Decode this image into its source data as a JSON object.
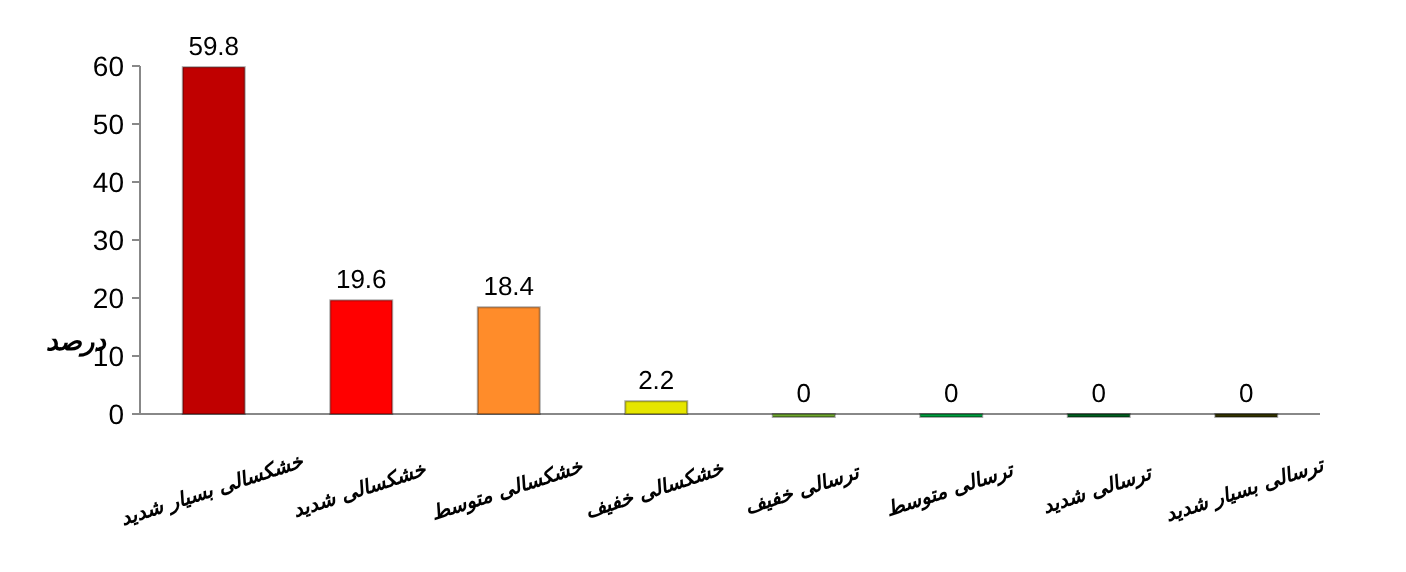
{
  "chart_data": {
    "type": "bar",
    "ylabel": "درصد",
    "categories": [
      "خشکسالی بسیار شدید",
      "خشکسالی شدید",
      "خشکسالی متوسط",
      "خشکسالی خفیف",
      "ترسالی خفیف",
      "ترسالی متوسط",
      "ترسالی شدید",
      "ترسالی بسیار شدید"
    ],
    "values": [
      59.8,
      19.6,
      18.4,
      2.2,
      0,
      0,
      0,
      0
    ],
    "colors": [
      "#c00000",
      "#ff0000",
      "#ff8c2a",
      "#e6e600",
      "#70a830",
      "#00a040",
      "#006020",
      "#333300"
    ],
    "ylim": [
      0,
      60
    ],
    "yticks": [
      0,
      10,
      20,
      30,
      40,
      50,
      60
    ],
    "grid": false,
    "data_labels": true
  }
}
